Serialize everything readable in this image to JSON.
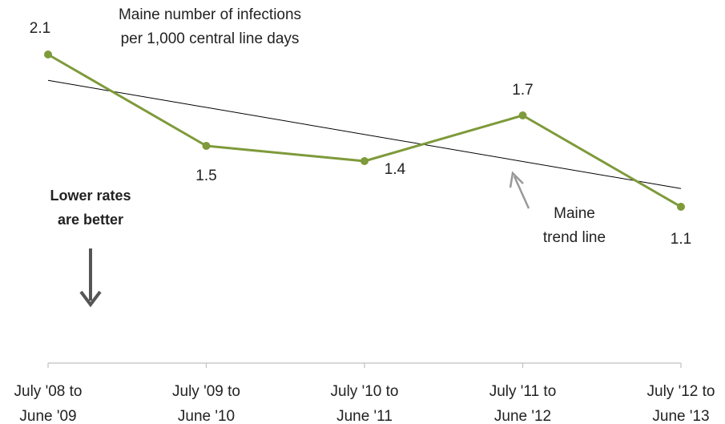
{
  "chart_data": {
    "type": "line",
    "title_lines": [
      "Maine number of infections",
      "per 1,000 central line days"
    ],
    "categories": [
      [
        "July '08 to",
        "June '09"
      ],
      [
        "July '09 to",
        "June '10"
      ],
      [
        "July '10 to",
        "June '11"
      ],
      [
        "July '11 to",
        "June '12"
      ],
      [
        "July '12 to",
        "June '13"
      ]
    ],
    "values": [
      2.1,
      1.5,
      1.4,
      1.7,
      1.1
    ],
    "data_labels": [
      "2.1",
      "1.5",
      "1.4",
      "1.7",
      "1.1"
    ],
    "trend_line": {
      "start": 1.93,
      "end": 1.22
    },
    "trend_label_lines": [
      "Maine",
      "trend line"
    ],
    "note_lines": [
      "Lower rates",
      "are better"
    ],
    "colors": {
      "series": "#7e9a3a",
      "trend": "#000000",
      "arrow": "#555555",
      "pointer": "#999999",
      "axis": "#bfbfbf"
    },
    "grid": false,
    "ylim": [
      0,
      2.3
    ]
  }
}
